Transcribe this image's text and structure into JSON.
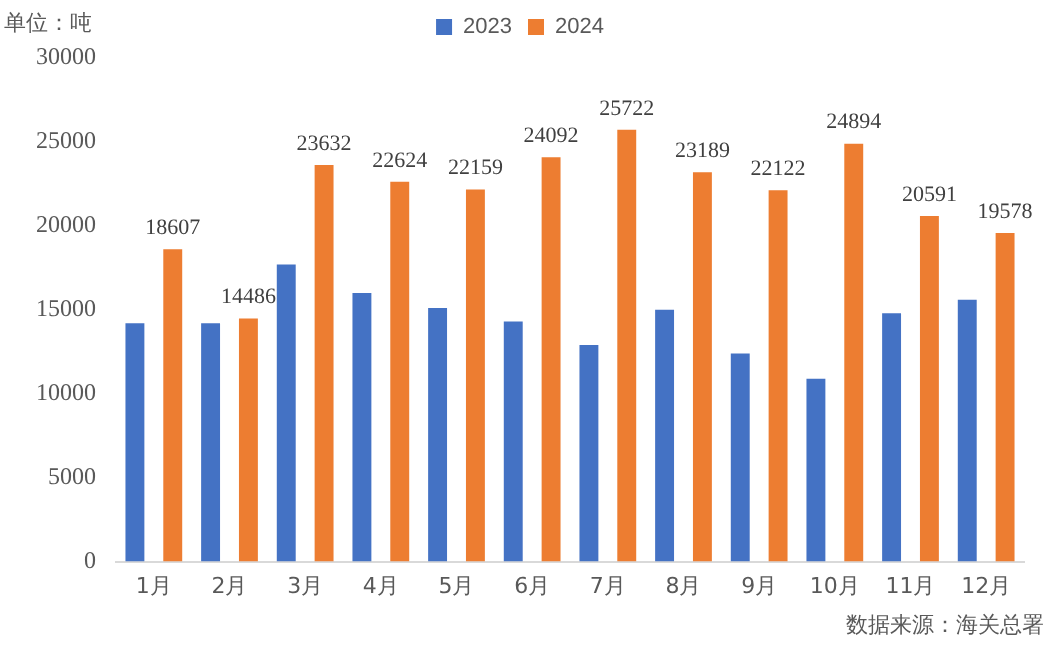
{
  "chart_data": {
    "type": "bar",
    "ylabel": "单位：吨",
    "annotations": [
      "数据来源：海关总署"
    ],
    "categories": [
      "1月",
      "2月",
      "3月",
      "4月",
      "5月",
      "6月",
      "7月",
      "8月",
      "9月",
      "10月",
      "11月",
      "12月"
    ],
    "series": [
      {
        "name": "2023",
        "color": "#4472c4",
        "values": [
          14200,
          14200,
          17700,
          16000,
          15100,
          14300,
          12900,
          15000,
          12400,
          10900,
          14800,
          15600
        ]
      },
      {
        "name": "2024",
        "color": "#ed7d31",
        "values": [
          18607,
          14486,
          23632,
          22624,
          22159,
          24092,
          25722,
          23189,
          22122,
          24894,
          20591,
          19578
        ],
        "value_labels": [
          "18607",
          "14486",
          "23632",
          "22624",
          "22159",
          "24092",
          "25722",
          "23189",
          "22122",
          "24894",
          "20591",
          "19578"
        ]
      }
    ],
    "ylim": [
      0,
      30000
    ],
    "yticks": [
      0,
      5000,
      10000,
      15000,
      20000,
      25000,
      30000
    ],
    "grid": false,
    "legend": "top"
  }
}
